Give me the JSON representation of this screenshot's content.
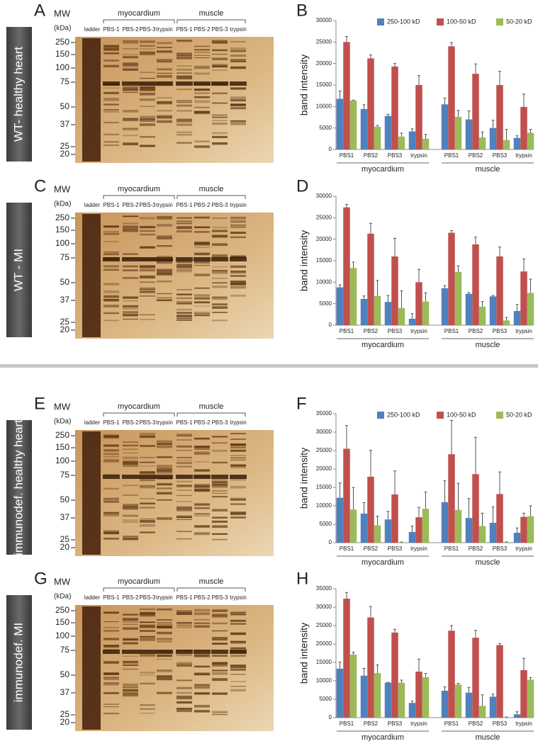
{
  "gels": [
    {
      "letter": "A",
      "sample": "WT- healthy heart",
      "mw_title": "MW",
      "mw_unit": "(kDa)",
      "markers": [
        250,
        150,
        100,
        75,
        50,
        37,
        25,
        20
      ],
      "lanes": [
        "ladder",
        "PBS-1",
        "PBS-2",
        "PBS-3",
        "trypsin",
        "PBS-1",
        "PBS-2",
        "PBS-3",
        "trypsin"
      ],
      "groups": [
        "myocardium",
        "muscle"
      ]
    },
    {
      "letter": "C",
      "sample": "WT - MI",
      "mw_title": "MW",
      "mw_unit": "(kDa)",
      "markers": [
        250,
        150,
        100,
        75,
        50,
        37,
        25,
        20
      ],
      "lanes": [
        "ladder",
        "PBS-1",
        "PBS-2",
        "PBS-3",
        "trypsin",
        "PBS-1",
        "PBS-2",
        "PBS-3",
        "trypsin"
      ],
      "groups": [
        "myocardium",
        "muscle"
      ]
    },
    {
      "letter": "E",
      "sample": "immunodef. healthy heart",
      "mw_title": "MW",
      "mw_unit": "(kDa)",
      "markers": [
        250,
        150,
        100,
        75,
        50,
        37,
        25,
        20
      ],
      "lanes": [
        "ladder",
        "PBS-1",
        "PBS-2",
        "PBS-3",
        "trypsin",
        "PBS-1",
        "PBS-2",
        "PBS-3",
        "trypsin"
      ],
      "groups": [
        "myocardium",
        "muscle"
      ]
    },
    {
      "letter": "G",
      "sample": "immunodef. MI",
      "mw_title": "MW",
      "mw_unit": "(kDa)",
      "markers": [
        250,
        150,
        100,
        75,
        50,
        37,
        25,
        20
      ],
      "lanes": [
        "ladder",
        "PBS-1",
        "PBS-2",
        "PBS-3",
        "trypsin",
        "PBS-1",
        "PBS-2",
        "PBS-3",
        "trypsin"
      ],
      "groups": [
        "myocardium",
        "muscle"
      ]
    }
  ],
  "chart_data": [
    {
      "type": "bar",
      "panel": "B",
      "ylabel": "band intensity",
      "categories": [
        "PBS1",
        "PBS2",
        "PBS3",
        "trypsin",
        "PBS1",
        "PBS2",
        "PBS3",
        "trypsin"
      ],
      "groups": [
        "myocardium",
        "muscle"
      ],
      "ylim": [
        0,
        30000
      ],
      "yticks": [
        0,
        5000,
        10000,
        15000,
        20000,
        25000,
        30000
      ],
      "series": [
        {
          "name": "250-100 kD",
          "color": "#4f81bd",
          "values": [
            11800,
            9400,
            7800,
            4200,
            10500,
            7000,
            5000,
            2700
          ],
          "errors": [
            1800,
            1000,
            400,
            600,
            1500,
            2000,
            1800,
            500
          ]
        },
        {
          "name": "100-50 kD",
          "color": "#c0504d",
          "values": [
            25000,
            21200,
            19300,
            15000,
            24000,
            17600,
            15000,
            9900
          ],
          "errors": [
            1300,
            800,
            700,
            2200,
            900,
            2300,
            3200,
            3000
          ]
        },
        {
          "name": "50-20 kD",
          "color": "#9bbb59",
          "values": [
            11400,
            5300,
            3000,
            2500,
            7600,
            2800,
            2200,
            3900
          ],
          "errors": [
            100,
            300,
            800,
            1000,
            1500,
            1300,
            2500,
            800
          ]
        }
      ]
    },
    {
      "type": "bar",
      "panel": "D",
      "ylabel": "band intensity",
      "categories": [
        "PBS1",
        "PBS2",
        "PBS3",
        "trypsin",
        "PBS1",
        "PBS2",
        "PBS3",
        "trypsin"
      ],
      "groups": [
        "myocardium",
        "muscle"
      ],
      "ylim": [
        0,
        30000
      ],
      "yticks": [
        0,
        5000,
        10000,
        15000,
        20000,
        25000,
        30000
      ],
      "series": [
        {
          "color": "#4f81bd",
          "values": [
            8800,
            6100,
            5400,
            1500,
            8600,
            7300,
            6700,
            3300
          ],
          "errors": [
            600,
            700,
            1500,
            1200,
            600,
            300,
            200,
            1500
          ]
        },
        {
          "color": "#c0504d",
          "values": [
            27400,
            21300,
            16000,
            10000,
            21500,
            18800,
            16000,
            12500
          ],
          "errors": [
            700,
            2400,
            4200,
            3000,
            500,
            1700,
            2200,
            2900
          ]
        },
        {
          "color": "#9bbb59",
          "values": [
            13300,
            6800,
            4000,
            5500,
            12400,
            4300,
            1100,
            7500
          ],
          "errors": [
            1400,
            3600,
            4000,
            2000,
            1400,
            1200,
            700,
            3200
          ]
        }
      ]
    },
    {
      "type": "bar",
      "panel": "F",
      "ylabel": "band intensity",
      "categories": [
        "PBS1",
        "PBS2",
        "PBS3",
        "trypsin",
        "PBS1",
        "PBS2",
        "PBS3",
        "trypsin"
      ],
      "groups": [
        "myocardium",
        "muscle"
      ],
      "ylim": [
        0,
        35000
      ],
      "yticks": [
        0,
        5000,
        10000,
        15000,
        20000,
        25000,
        30000,
        35000
      ],
      "series": [
        {
          "name": "250-100 kD",
          "color": "#4f81bd",
          "values": [
            12200,
            7900,
            6300,
            2900,
            11000,
            6700,
            5400,
            2700
          ],
          "errors": [
            4000,
            3000,
            2200,
            1600,
            5800,
            5300,
            4300,
            1300
          ]
        },
        {
          "name": "100-50 kD",
          "color": "#c0504d",
          "values": [
            25500,
            17900,
            13100,
            6900,
            24000,
            18600,
            13200,
            7000
          ],
          "errors": [
            6300,
            7200,
            6400,
            2700,
            9200,
            10000,
            6000,
            1000
          ]
        },
        {
          "name": "50-20 kD",
          "color": "#9bbb59",
          "values": [
            9000,
            4700,
            100,
            9200,
            8900,
            4500,
            150,
            7200
          ],
          "errors": [
            6000,
            2500,
            100,
            4600,
            7200,
            3500,
            100,
            2800
          ]
        }
      ]
    },
    {
      "type": "bar",
      "panel": "H",
      "ylabel": "band intensity",
      "categories": [
        "PBS1",
        "PBS2",
        "PBS3",
        "trypsin",
        "PBS1",
        "PBS2",
        "PBS3",
        "trypsin"
      ],
      "groups": [
        "myocardium",
        "muscle"
      ],
      "ylim": [
        0,
        35000
      ],
      "yticks": [
        0,
        5000,
        10000,
        15000,
        20000,
        25000,
        30000,
        35000
      ],
      "series": [
        {
          "color": "#4f81bd",
          "values": [
            13300,
            11400,
            9500,
            4000,
            7300,
            6800,
            5700,
            900
          ],
          "errors": [
            1800,
            2000,
            100,
            500,
            1100,
            1400,
            700,
            700
          ]
        },
        {
          "color": "#c0504d",
          "values": [
            32300,
            27200,
            23100,
            12500,
            23600,
            21700,
            19700,
            12900
          ],
          "errors": [
            1700,
            3000,
            900,
            3400,
            1400,
            2000,
            400,
            3200
          ]
        },
        {
          "color": "#9bbb59",
          "values": [
            17100,
            12100,
            9500,
            11000,
            9000,
            3200,
            100,
            10300
          ],
          "errors": [
            700,
            2200,
            700,
            1000,
            300,
            3000,
            100,
            600
          ]
        }
      ]
    }
  ]
}
